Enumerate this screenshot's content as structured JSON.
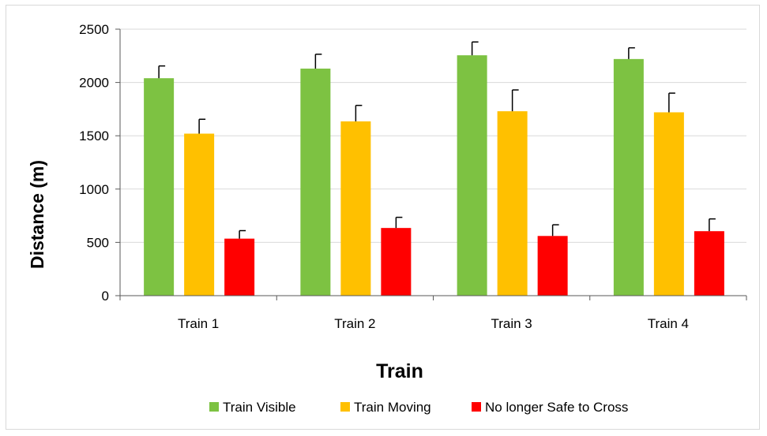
{
  "chart_data": {
    "type": "bar",
    "title": "",
    "xlabel": "Train",
    "ylabel": "Distance (m)",
    "ylim": [
      0,
      2500
    ],
    "yticks": [
      0,
      500,
      1000,
      1500,
      2000,
      2500
    ],
    "grid": true,
    "legend_position": "bottom",
    "categories": [
      "Train 1",
      "Train 2",
      "Train 3",
      "Train 4"
    ],
    "series": [
      {
        "name": "Train Visible",
        "color": "#7dc242",
        "values": [
          2040,
          2130,
          2255,
          2220
        ],
        "error": [
          115,
          135,
          125,
          105
        ]
      },
      {
        "name": "Train Moving",
        "color": "#ffc000",
        "values": [
          1520,
          1635,
          1730,
          1720
        ],
        "error": [
          135,
          150,
          200,
          180
        ]
      },
      {
        "name": "No longer Safe to Cross",
        "color": "#ff0000",
        "values": [
          535,
          635,
          560,
          605
        ],
        "error": [
          75,
          100,
          105,
          115
        ]
      }
    ]
  }
}
